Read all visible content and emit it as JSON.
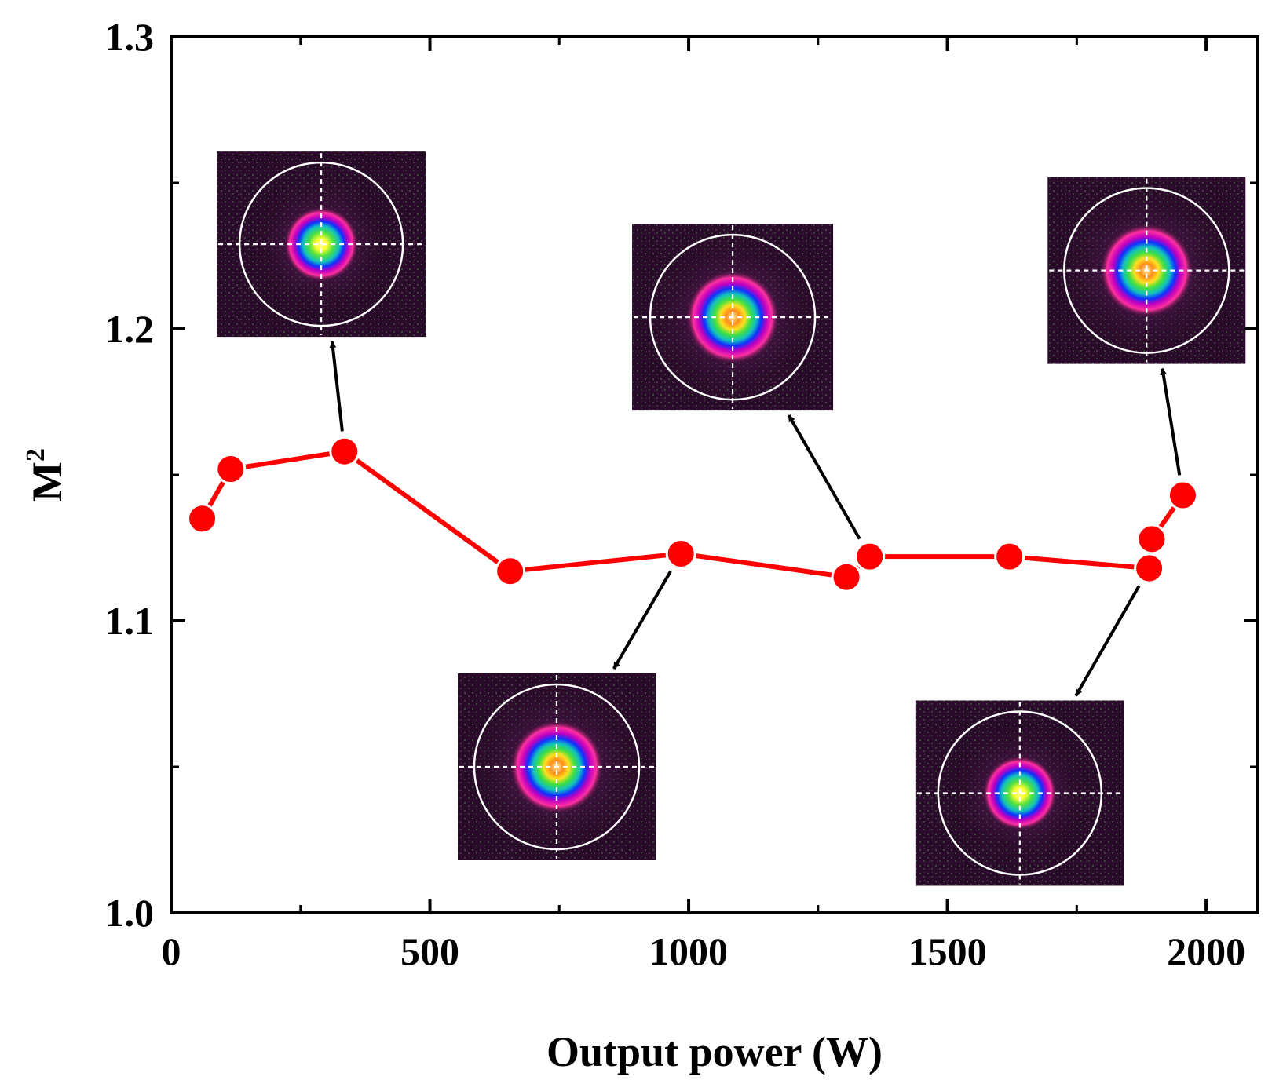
{
  "chart_data": {
    "type": "line",
    "title": "",
    "xlabel": "Output power (W)",
    "ylabel": "M",
    "ylabel_superscript": "2",
    "xlim": [
      0,
      2100
    ],
    "ylim": [
      1.0,
      1.3
    ],
    "x_ticks": [
      0,
      500,
      1000,
      1500,
      2000
    ],
    "x_tick_labels": [
      "0",
      "500",
      "1000",
      "1500",
      "2000"
    ],
    "x_minor_ticks": [
      250,
      750,
      1250,
      1750
    ],
    "y_ticks": [
      1.0,
      1.1,
      1.2,
      1.3
    ],
    "y_tick_labels": [
      "1.0",
      "1.1",
      "1.2",
      "1.3"
    ],
    "y_minor_ticks": [
      1.05,
      1.15,
      1.25
    ],
    "grid": false,
    "series": [
      {
        "name": "M2",
        "color": "#ff0000",
        "marker": "circle",
        "x": [
          60,
          115,
          335,
          655,
          985,
          1305,
          1350,
          1620,
          1890,
          1895,
          1955
        ],
        "y": [
          1.135,
          1.152,
          1.158,
          1.117,
          1.123,
          1.115,
          1.122,
          1.122,
          1.118,
          1.128,
          1.143
        ]
      }
    ],
    "insets": [
      {
        "name": "beam-profile-1",
        "arrow_from_index": 2,
        "cx": 290,
        "cy": 1.229,
        "size": "small",
        "core_color": "#ffff30"
      },
      {
        "name": "beam-profile-2",
        "arrow_from_index": 6,
        "cx": 1085,
        "cy": 1.204,
        "size": "large",
        "core_color": "#ff8c1a"
      },
      {
        "name": "beam-profile-3",
        "arrow_from_index": 10,
        "cx": 1885,
        "cy": 1.22,
        "size": "medium",
        "core_color": "#ff8c1a"
      },
      {
        "name": "beam-profile-4",
        "arrow_from_index": 4,
        "cx": 745,
        "cy": 1.05,
        "size": "medium",
        "core_color": "#ff8c1a"
      },
      {
        "name": "beam-profile-5",
        "arrow_from_index": 8,
        "cx": 1640,
        "cy": 1.041,
        "size": "small",
        "core_color": "#ffff30"
      }
    ]
  }
}
